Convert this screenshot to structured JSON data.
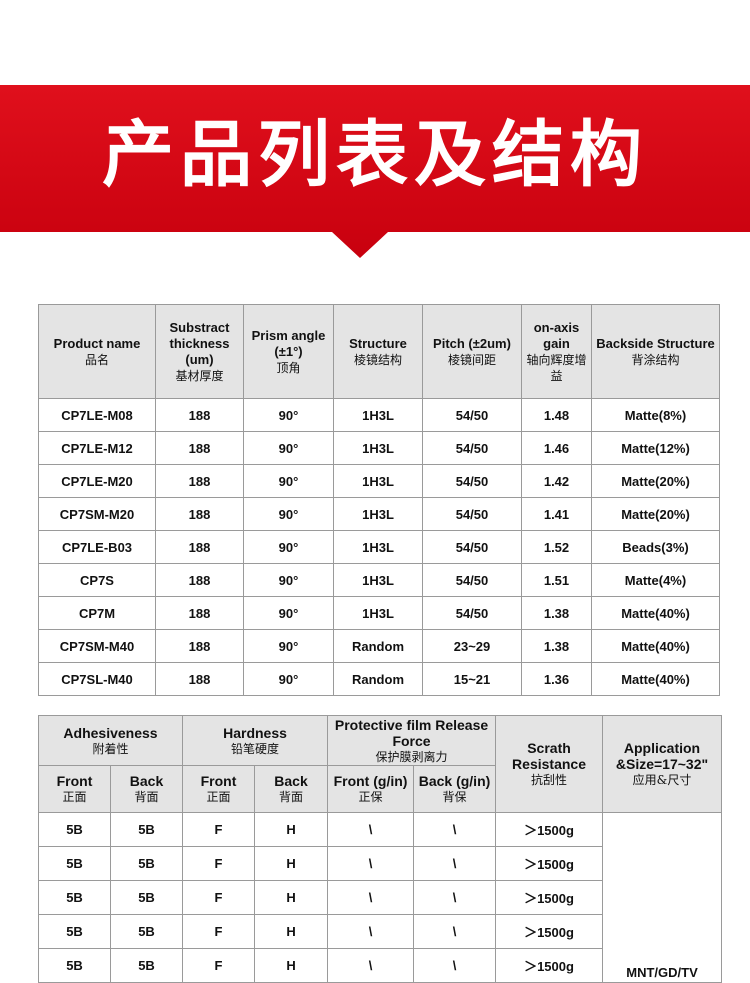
{
  "banner": {
    "title": "产品列表及结构"
  },
  "table1": {
    "headers": [
      {
        "en": "Product name",
        "zh": "品名"
      },
      {
        "en": "Substract thickness (um)",
        "zh": "基材厚度"
      },
      {
        "en": "Prism angle (±1°)",
        "zh": "顶角"
      },
      {
        "en": "Structure",
        "zh": "棱镜结构"
      },
      {
        "en": "Pitch (±2um)",
        "zh": "棱镜间距"
      },
      {
        "en": "on-axis gain",
        "zh": "轴向辉度增益"
      },
      {
        "en": "Backside Structure",
        "zh": "背涂结构"
      }
    ],
    "rows": [
      [
        "CP7LE-M08",
        "188",
        "90°",
        "1H3L",
        "54/50",
        "1.48",
        "Matte(8%)"
      ],
      [
        "CP7LE-M12",
        "188",
        "90°",
        "1H3L",
        "54/50",
        "1.46",
        "Matte(12%)"
      ],
      [
        "CP7LE-M20",
        "188",
        "90°",
        "1H3L",
        "54/50",
        "1.42",
        "Matte(20%)"
      ],
      [
        "CP7SM-M20",
        "188",
        "90°",
        "1H3L",
        "54/50",
        "1.41",
        "Matte(20%)"
      ],
      [
        "CP7LE-B03",
        "188",
        "90°",
        "1H3L",
        "54/50",
        "1.52",
        "Beads(3%)"
      ],
      [
        "CP7S",
        "188",
        "90°",
        "1H3L",
        "54/50",
        "1.51",
        "Matte(4%)"
      ],
      [
        "CP7M",
        "188",
        "90°",
        "1H3L",
        "54/50",
        "1.38",
        "Matte(40%)"
      ],
      [
        "CP7SM-M40",
        "188",
        "90°",
        "Random",
        "23~29",
        "1.38",
        "Matte(40%)"
      ],
      [
        "CP7SL-M40",
        "188",
        "90°",
        "Random",
        "15~21",
        "1.36",
        "Matte(40%)"
      ]
    ]
  },
  "table2": {
    "groups": [
      {
        "en": "Adhesiveness",
        "zh": "附着性"
      },
      {
        "en": "Hardness",
        "zh": "铅笔硬度"
      },
      {
        "en": "Protective film Release Force",
        "zh": "保护膜剥离力"
      }
    ],
    "scratch": {
      "en": "Scrath Resistance",
      "zh": "抗刮性"
    },
    "application": {
      "en": "Application &Size=17~32\"",
      "zh": "应用&尺寸"
    },
    "subheaders": [
      {
        "en": "Front",
        "zh": "正面"
      },
      {
        "en": "Back",
        "zh": "背面"
      },
      {
        "en": "Front",
        "zh": "正面"
      },
      {
        "en": "Back",
        "zh": "背面"
      },
      {
        "en": "Front (g/in)",
        "zh": "正保"
      },
      {
        "en": "Back (g/in)",
        "zh": "背保"
      }
    ],
    "rows": [
      [
        "5B",
        "5B",
        "F",
        "H",
        "\\",
        "\\",
        "＞1500g"
      ],
      [
        "5B",
        "5B",
        "F",
        "H",
        "\\",
        "\\",
        "＞1500g"
      ],
      [
        "5B",
        "5B",
        "F",
        "H",
        "\\",
        "\\",
        "＞1500g"
      ],
      [
        "5B",
        "5B",
        "F",
        "H",
        "\\",
        "\\",
        "＞1500g"
      ],
      [
        "5B",
        "5B",
        "F",
        "H",
        "\\",
        "\\",
        "＞1500g"
      ]
    ],
    "application_value": "MNT/GD/TV"
  }
}
